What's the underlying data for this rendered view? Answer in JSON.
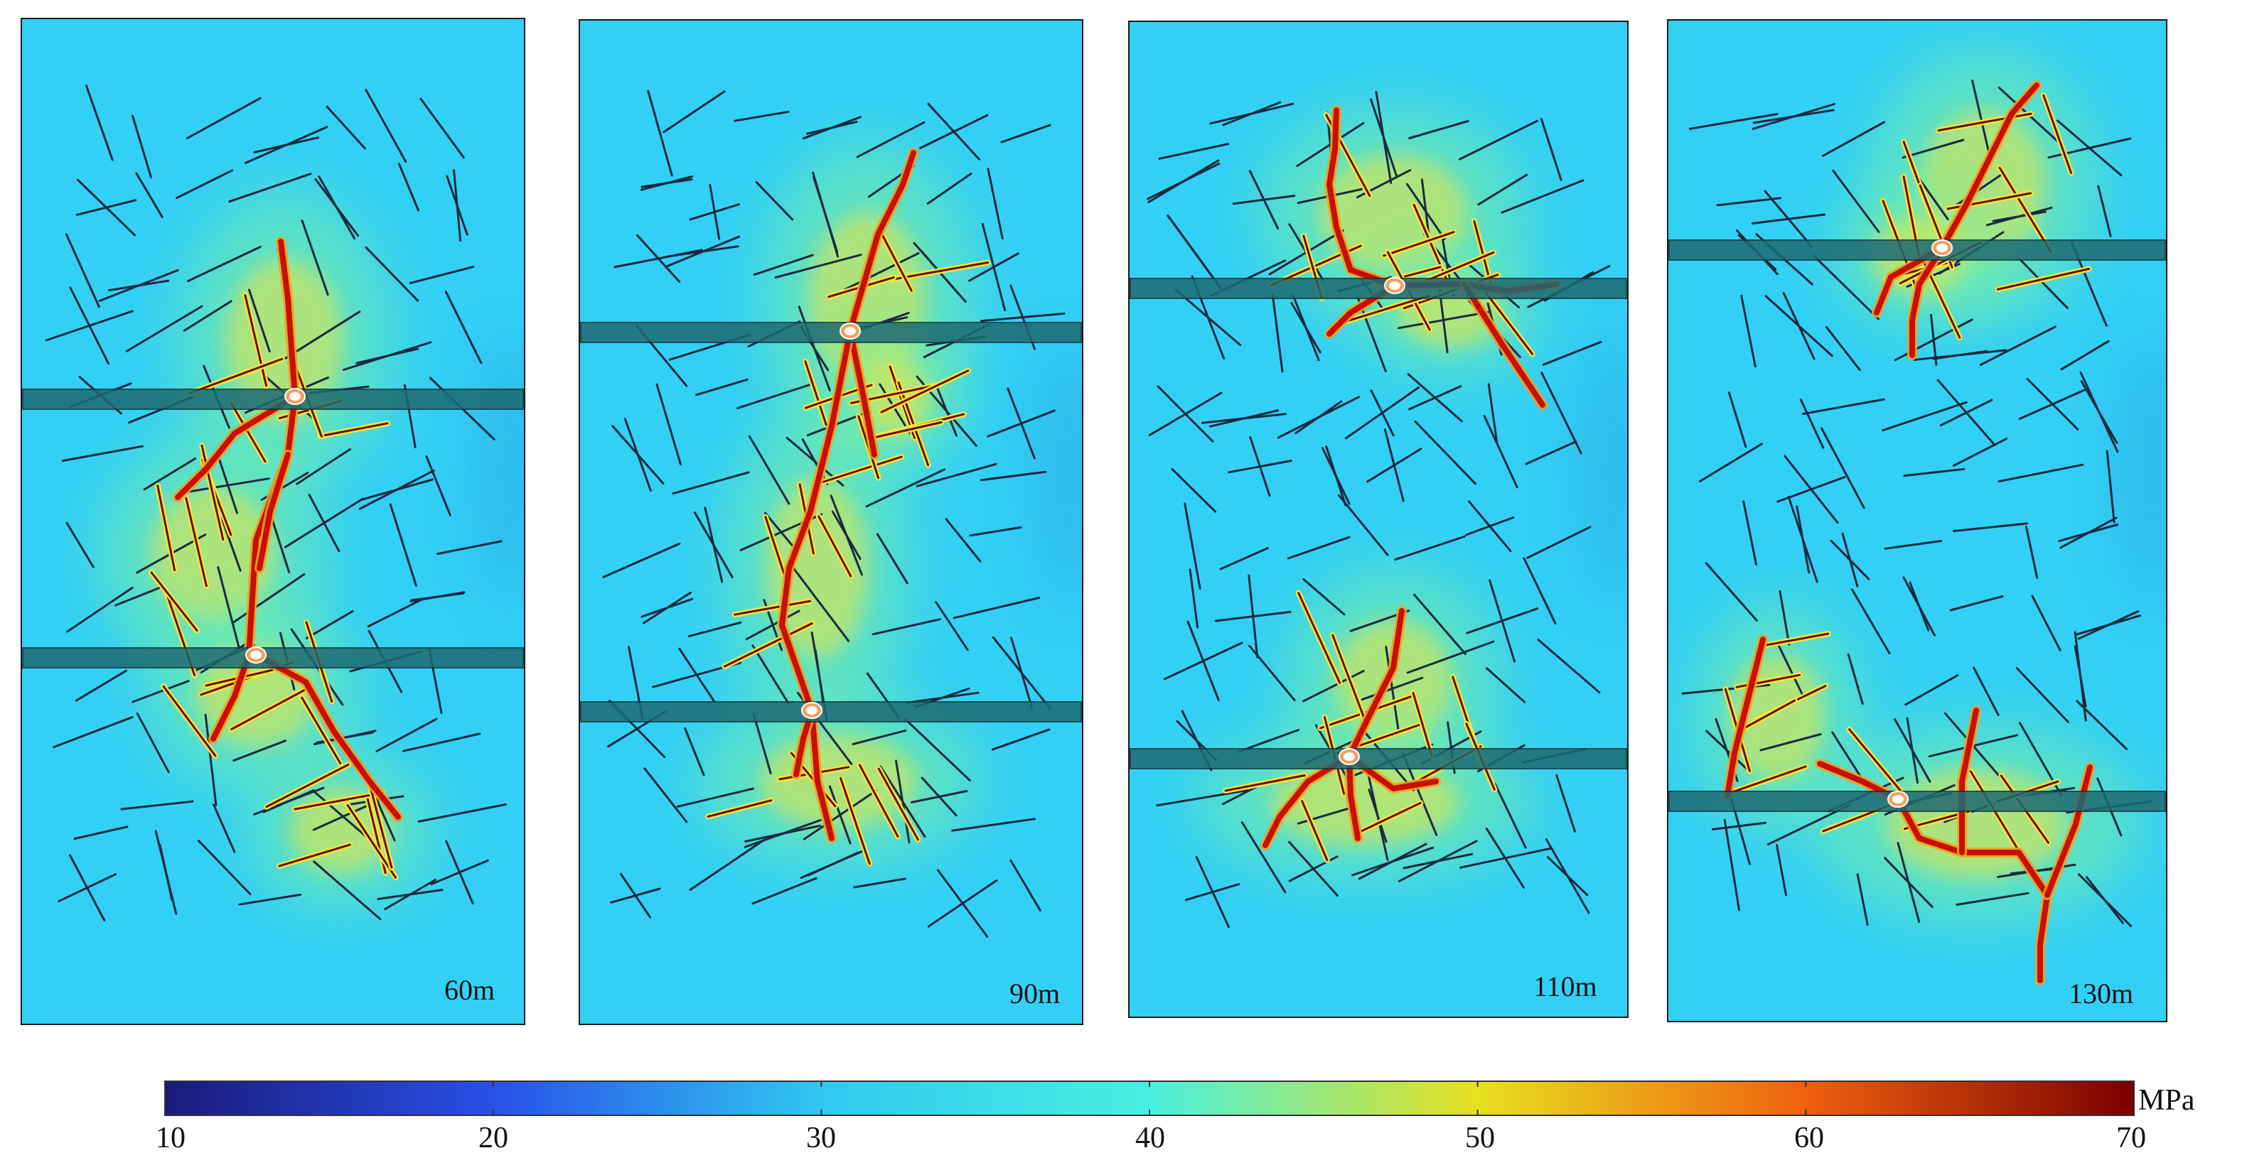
{
  "panels": [
    {
      "label": "60m",
      "bands": [
        "upper",
        "lower"
      ]
    },
    {
      "label": "90m",
      "bands": [
        "upper",
        "lower"
      ]
    },
    {
      "label": "110m",
      "bands": [
        "upper",
        "lower"
      ]
    },
    {
      "label": "130m",
      "bands": [
        "upper",
        "lower"
      ]
    }
  ],
  "colorbar": {
    "min": 10,
    "max": 70,
    "ticks": [
      "10",
      "20",
      "30",
      "40",
      "50",
      "60",
      "70"
    ],
    "unit": "MPa",
    "stops": [
      "#1a1a7a",
      "#2850e8",
      "#30c8f0",
      "#48f0e0",
      "#e8e020",
      "#f06010",
      "#7a0000"
    ]
  },
  "colors": {
    "background_field": "#33d0f5",
    "natural_fracture": "#1a2a40",
    "hydraulic_fracture": "#c81000",
    "stimulated_zone": "#f0e640",
    "band": "#1e6a72"
  }
}
